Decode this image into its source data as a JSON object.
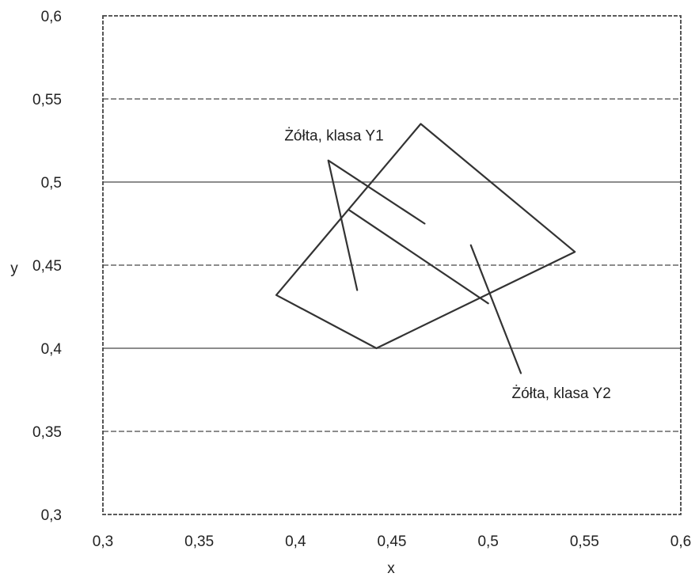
{
  "chart_data": {
    "type": "line",
    "title": "",
    "xlabel": "x",
    "ylabel": "y",
    "xlim": [
      0.3,
      0.6
    ],
    "ylim": [
      0.3,
      0.6
    ],
    "x_ticks": [
      0.3,
      0.35,
      0.4,
      0.45,
      0.5,
      0.55,
      0.6
    ],
    "x_tick_labels": [
      "0,3",
      "0,35",
      "0,4",
      "0,45",
      "0,5",
      "0,55",
      "0,6"
    ],
    "y_ticks": [
      0.3,
      0.35,
      0.4,
      0.45,
      0.5,
      0.55,
      0.6
    ],
    "y_tick_labels": [
      "0,3",
      "0,35",
      "0,4",
      "0,45",
      "0,5",
      "0,55",
      "0,6"
    ],
    "grid": "horizontal",
    "legend": "none",
    "series": [
      {
        "points": [
          [
            0.39,
            0.432
          ],
          [
            0.465,
            0.535
          ],
          [
            0.545,
            0.458
          ],
          [
            0.442,
            0.4
          ],
          [
            0.39,
            0.432
          ]
        ]
      },
      {
        "points": [
          [
            0.432,
            0.435
          ],
          [
            0.417,
            0.513
          ],
          [
            0.467,
            0.475
          ]
        ]
      },
      {
        "points": [
          [
            0.428,
            0.483
          ],
          [
            0.5,
            0.427
          ]
        ]
      },
      {
        "points": [
          [
            0.491,
            0.462
          ],
          [
            0.517,
            0.385
          ]
        ]
      }
    ],
    "annotations": [
      {
        "text": "Żółta, klasa Y1",
        "x": 0.42,
        "y": 0.525
      },
      {
        "text": "Żółta, klasa Y2",
        "x": 0.538,
        "y": 0.37
      }
    ]
  }
}
